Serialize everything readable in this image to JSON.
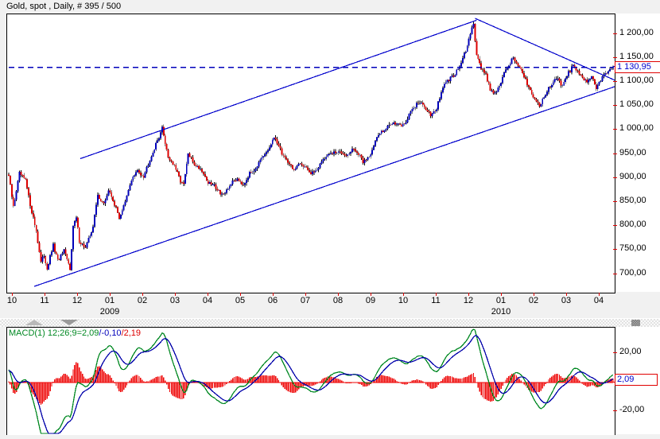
{
  "window": {
    "title": "Gold, spot , Daily, # 395 / 500",
    "background": "#f1f1f1"
  },
  "price_panel": {
    "last_price_label": "1 130,95",
    "y_axis": {
      "ticks": [
        {
          "label": "1 200,00",
          "value": 1200
        },
        {
          "label": "1 150,00",
          "value": 1150
        },
        {
          "label": "1 100,00",
          "value": 1100
        },
        {
          "label": "1 050,00",
          "value": 1050
        },
        {
          "label": "1 000,00",
          "value": 1000
        },
        {
          "label": "950,00",
          "value": 950
        },
        {
          "label": "900,00",
          "value": 900
        },
        {
          "label": "850,00",
          "value": 850
        },
        {
          "label": "800,00",
          "value": 800
        },
        {
          "label": "750,00",
          "value": 750
        },
        {
          "label": "700,00",
          "value": 700
        }
      ]
    },
    "x_axis": {
      "months": [
        "10",
        "11",
        "12",
        "01",
        "02",
        "03",
        "04",
        "05",
        "06",
        "07",
        "08",
        "09",
        "10",
        "11",
        "12",
        "01",
        "02",
        "03",
        "04"
      ],
      "years": [
        {
          "label": "2009",
          "month_index": 3
        },
        {
          "label": "2010",
          "month_index": 15
        }
      ]
    }
  },
  "macd_panel": {
    "label": {
      "green": "MACD(1) 12;26;9=2,09",
      "blue": "/-0,10",
      "red": "/2,19"
    },
    "value_box_label": "2,09",
    "y_axis": {
      "ticks": [
        {
          "label": "20,00",
          "value": 20
        },
        {
          "label": "0,00",
          "value": 0
        },
        {
          "label": "-20,00",
          "value": -20
        }
      ]
    }
  },
  "colors": {
    "candle_up": "#0000bb",
    "candle_down": "#dd0000",
    "wick": "#000000",
    "trendline": "#0000cc",
    "dashed_line": "#0000bb",
    "macd_line": "#008822",
    "signal_line": "#0000aa",
    "histogram": "#ee0000",
    "axis_tick": "#dd0000",
    "boxed_value_text": "#0000cc",
    "box_border": "#e00000"
  },
  "chart_data": [
    {
      "type": "candlestick",
      "title": "Gold, spot, Daily",
      "bars_total": 395,
      "last_close": 1130.95,
      "ylim": [
        662,
        1240
      ],
      "yticks": [
        1200,
        1150,
        1100,
        1050,
        1000,
        950,
        900,
        850,
        800,
        750,
        700
      ],
      "x_categories_months": [
        "10/2008",
        "11/2008",
        "12/2008",
        "01/2009",
        "02/2009",
        "03/2009",
        "04/2009",
        "05/2009",
        "06/2009",
        "07/2009",
        "08/2009",
        "09/2009",
        "10/2009",
        "11/2009",
        "12/2009",
        "01/2010",
        "02/2010",
        "03/2010",
        "04/2010"
      ],
      "price_anchors": [
        [
          0,
          905
        ],
        [
          3,
          840
        ],
        [
          7,
          910
        ],
        [
          11,
          895
        ],
        [
          14,
          845
        ],
        [
          18,
          790
        ],
        [
          21,
          725
        ],
        [
          23,
          740
        ],
        [
          25,
          712
        ],
        [
          29,
          760
        ],
        [
          32,
          728
        ],
        [
          36,
          748
        ],
        [
          40,
          712
        ],
        [
          42,
          800
        ],
        [
          44,
          818
        ],
        [
          46,
          770
        ],
        [
          50,
          755
        ],
        [
          55,
          800
        ],
        [
          58,
          865
        ],
        [
          62,
          845
        ],
        [
          65,
          875
        ],
        [
          68,
          855
        ],
        [
          72,
          818
        ],
        [
          76,
          850
        ],
        [
          80,
          898
        ],
        [
          84,
          915
        ],
        [
          88,
          905
        ],
        [
          92,
          940
        ],
        [
          96,
          970
        ],
        [
          100,
          1004
        ],
        [
          104,
          945
        ],
        [
          108,
          925
        ],
        [
          112,
          895
        ],
        [
          114,
          886
        ],
        [
          117,
          950
        ],
        [
          121,
          930
        ],
        [
          126,
          917
        ],
        [
          130,
          890
        ],
        [
          134,
          885
        ],
        [
          138,
          870
        ],
        [
          141,
          866
        ],
        [
          145,
          890
        ],
        [
          149,
          900
        ],
        [
          153,
          888
        ],
        [
          157,
          910
        ],
        [
          161,
          922
        ],
        [
          165,
          940
        ],
        [
          169,
          958
        ],
        [
          172,
          978
        ],
        [
          174,
          983
        ],
        [
          178,
          952
        ],
        [
          182,
          935
        ],
        [
          186,
          917
        ],
        [
          190,
          930
        ],
        [
          194,
          925
        ],
        [
          197,
          908
        ],
        [
          201,
          920
        ],
        [
          205,
          940
        ],
        [
          209,
          950
        ],
        [
          213,
          953
        ],
        [
          217,
          955
        ],
        [
          221,
          948
        ],
        [
          225,
          962
        ],
        [
          229,
          945
        ],
        [
          231,
          935
        ],
        [
          235,
          945
        ],
        [
          239,
          978
        ],
        [
          243,
          998
        ],
        [
          247,
          1008
        ],
        [
          251,
          1018
        ],
        [
          255,
          1008
        ],
        [
          259,
          1018
        ],
        [
          263,
          1045
        ],
        [
          267,
          1058
        ],
        [
          271,
          1050
        ],
        [
          275,
          1033
        ],
        [
          279,
          1045
        ],
        [
          283,
          1090
        ],
        [
          287,
          1105
        ],
        [
          291,
          1118
        ],
        [
          295,
          1140
        ],
        [
          299,
          1175
        ],
        [
          302,
          1212
        ],
        [
          303,
          1220
        ],
        [
          305,
          1160
        ],
        [
          308,
          1130
        ],
        [
          311,
          1115
        ],
        [
          314,
          1085
        ],
        [
          317,
          1078
        ],
        [
          320,
          1092
        ],
        [
          323,
          1118
        ],
        [
          326,
          1135
        ],
        [
          329,
          1152
        ],
        [
          333,
          1130
        ],
        [
          336,
          1110
        ],
        [
          340,
          1085
        ],
        [
          343,
          1065
        ],
        [
          346,
          1052
        ],
        [
          350,
          1075
        ],
        [
          354,
          1098
        ],
        [
          357,
          1110
        ],
        [
          361,
          1090
        ],
        [
          365,
          1120
        ],
        [
          368,
          1134
        ],
        [
          372,
          1118
        ],
        [
          376,
          1102
        ],
        [
          380,
          1110
        ],
        [
          383,
          1088
        ],
        [
          386,
          1105
        ],
        [
          389,
          1118
        ],
        [
          392,
          1126
        ],
        [
          394,
          1130.95
        ]
      ],
      "annotations": {
        "dashed_horizontal_level": 1130.95,
        "trendlines": [
          {
            "name": "ascending-channel-upper",
            "t1": 46.7,
            "p1": 941,
            "t2": 305,
            "p2": 1229
          },
          {
            "name": "ascending-channel-lower",
            "t1": 16.6,
            "p1": 675,
            "t2": 395.2,
            "p2": 1091
          },
          {
            "name": "descending-resistance",
            "t1": 304,
            "p1": 1233,
            "t2": 396.7,
            "p2": 1102
          }
        ]
      }
    },
    {
      "type": "macd",
      "params": {
        "fast": 12,
        "slow": 26,
        "signal": 9
      },
      "last_values": {
        "macd": 2.09,
        "signal": -0.1,
        "histogram": 2.19
      },
      "ylim": [
        -36,
        38
      ],
      "yticks": [
        20,
        0,
        -20
      ],
      "derived_from": "price_anchors of chart_data[0]"
    }
  ]
}
